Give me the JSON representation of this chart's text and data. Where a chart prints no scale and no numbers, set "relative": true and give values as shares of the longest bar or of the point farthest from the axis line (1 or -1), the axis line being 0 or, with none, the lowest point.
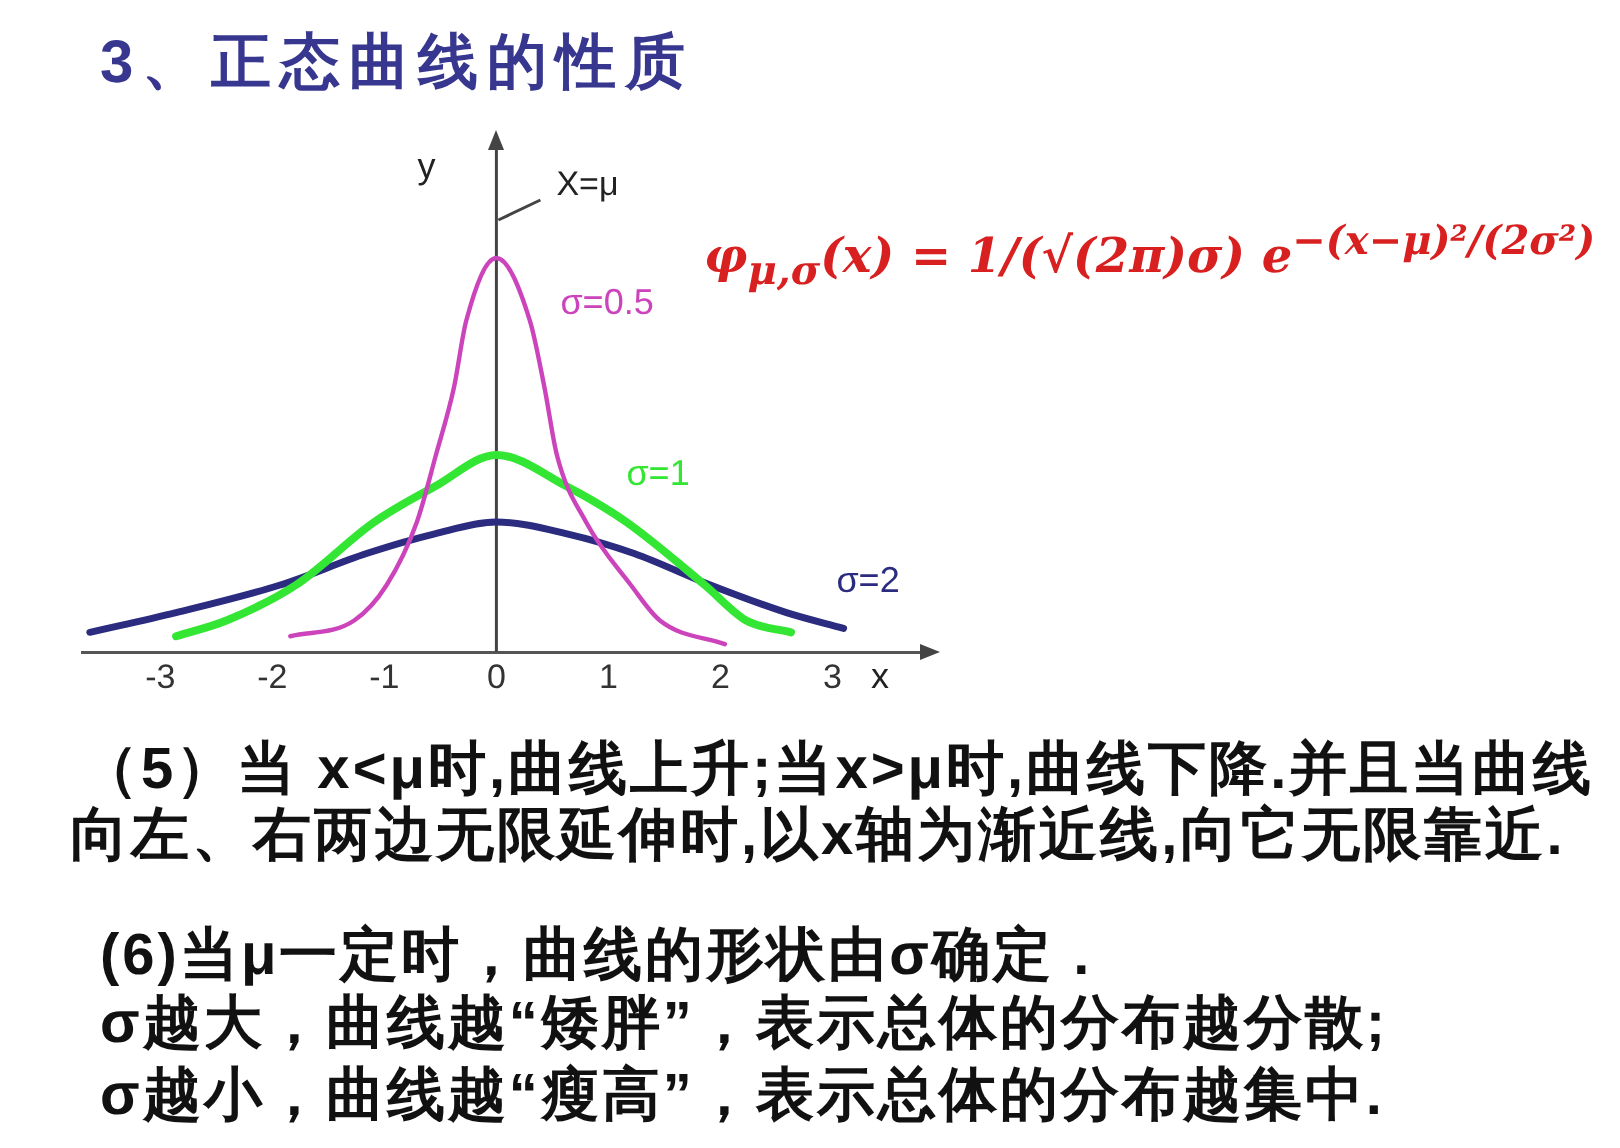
{
  "chart_data": {
    "type": "line",
    "title": "3、正态曲线的性质",
    "xlabel": "x",
    "ylabel": "y",
    "relative": true,
    "xlim": [
      -3.7,
      3.8
    ],
    "xticks": [
      -3,
      -2,
      -1,
      0,
      1,
      2,
      3
    ],
    "ref_lines": [
      {
        "axis": "x",
        "value": 0,
        "label": "X=μ"
      }
    ],
    "series": [
      {
        "name": "σ=0.5",
        "color": "#cc44bb",
        "x": [
          -1.84,
          -1.27,
          -0.98,
          -0.71,
          -0.54,
          -0.38,
          -0.27,
          0,
          0.3,
          0.43,
          0.54,
          0.8,
          1.2,
          1.46,
          2.04
        ],
        "values": [
          0.04,
          0.08,
          0.17,
          0.33,
          0.5,
          0.67,
          0.84,
          1,
          0.84,
          0.67,
          0.5,
          0.33,
          0.17,
          0.08,
          0.02
        ]
      },
      {
        "name": "σ=1",
        "color": "#33e633",
        "x": [
          -2.86,
          -2.41,
          -1.79,
          -1.09,
          -0.55,
          0,
          0.63,
          1.16,
          1.86,
          2.23,
          2.63
        ],
        "values": [
          0.04,
          0.08,
          0.17,
          0.33,
          0.42,
          0.5,
          0.42,
          0.33,
          0.17,
          0.08,
          0.05
        ]
      },
      {
        "name": "σ=2",
        "color": "#2b2b80",
        "x": [
          -3.63,
          -2.86,
          -1.93,
          -1.16,
          -0.55,
          0,
          0.63,
          1.23,
          1.91,
          2.59,
          3.1
        ],
        "values": [
          0.05,
          0.1,
          0.17,
          0.25,
          0.3,
          0.33,
          0.3,
          0.25,
          0.17,
          0.1,
          0.06
        ]
      }
    ],
    "annotations": [
      "φ$_{μ,σ}$(x) = 1/(√(2π)σ) e$^{−(x−μ)²/(2σ²)}$",
      "（5）当 x<μ时,曲线上升;当x>μ时,曲线下降.并且当曲线",
      "向左、右两边无限延伸时,以x轴为渐近线,向它无限靠近.",
      "(6)当μ一定时，曲线的形状由σ确定 .",
      "σ越大，曲线越“矮胖”，表示总体的分布越分散;",
      "σ越小，曲线越“瘦高”，表示总体的分布越集中."
    ]
  }
}
